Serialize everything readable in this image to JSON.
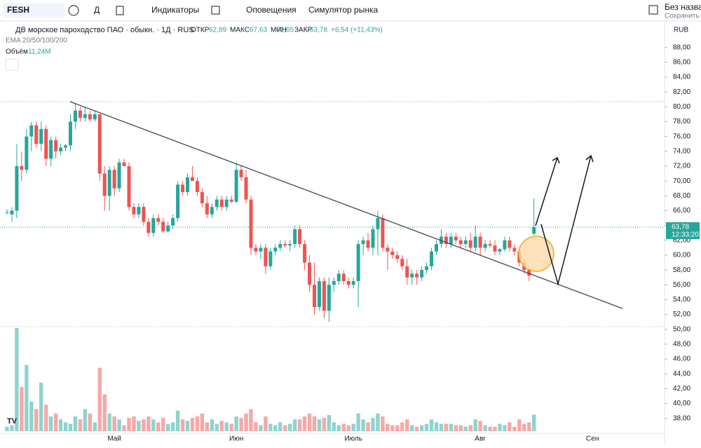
{
  "toolbar": {
    "symbol": "FESH",
    "interval": "Д",
    "indicators": "Индикаторы",
    "alerts": "Оповещения",
    "replay": "Симулятор рынка",
    "layout_name": "Без названи",
    "save": "Сохранить"
  },
  "legend": {
    "name": "ДВ морское пароходство ПАО · обыкн. · 1Д · RUS",
    "open_label": "ОТКР",
    "open": "62,89",
    "high_label": "МАКС",
    "high": "67,63",
    "low_label": "МИН",
    "low": "62,65",
    "close_label": "ЗАКР",
    "close": "63,78",
    "change": "+6,54 (+11,43%)",
    "ema": "EMA 20/50/100/200",
    "volume_label": "Объём",
    "volume_value": "11,24M"
  },
  "chart_data": {
    "type": "candlestick",
    "currency": "RUB",
    "price_label": "63,78",
    "countdown": "12:33:20",
    "up_color": "#26a69a",
    "down_color": "#ef5350",
    "volume_up_color": "#8fd3cd",
    "volume_down_color": "#f5a8a8",
    "ylim": [
      35.8,
      89.2
    ],
    "yticks": [
      {
        "value": 38,
        "label": "38,00"
      },
      {
        "value": 40,
        "label": "40,00"
      },
      {
        "value": 42,
        "label": "42,00"
      },
      {
        "value": 44,
        "label": "44,00"
      },
      {
        "value": 46,
        "label": "46,00"
      },
      {
        "value": 48,
        "label": "48,00"
      },
      {
        "value": 50,
        "label": "50,00"
      },
      {
        "value": 52,
        "label": "52,00"
      },
      {
        "value": 54,
        "label": "54,00"
      },
      {
        "value": 56,
        "label": "56,00"
      },
      {
        "value": 58,
        "label": "58,00"
      },
      {
        "value": 60,
        "label": "60,00"
      },
      {
        "value": 62,
        "label": "62,00"
      },
      {
        "value": 64,
        "label": "64,00"
      },
      {
        "value": 66,
        "label": "66,00"
      },
      {
        "value": 68,
        "label": "68,00"
      },
      {
        "value": 70,
        "label": "70,00"
      },
      {
        "value": 72,
        "label": "72,00"
      },
      {
        "value": 74,
        "label": "74,00"
      },
      {
        "value": 76,
        "label": "76,00"
      },
      {
        "value": 78,
        "label": "78,00"
      },
      {
        "value": 80,
        "label": "80,00"
      },
      {
        "value": 82,
        "label": "82,00"
      },
      {
        "value": 84,
        "label": "84,00"
      },
      {
        "value": 86,
        "label": "86,00"
      },
      {
        "value": 88,
        "label": "88,00"
      }
    ],
    "categories": [
      null,
      null,
      null,
      null,
      null,
      null,
      null,
      null,
      null,
      null,
      null,
      null,
      null,
      null,
      null,
      null,
      null,
      null,
      null,
      null,
      null,
      null,
      "Май",
      null,
      null,
      null,
      null,
      null,
      null,
      null,
      null,
      null,
      null,
      null,
      null,
      null,
      null,
      null,
      null,
      null,
      null,
      null,
      null,
      null,
      null,
      null,
      null,
      "Июн",
      null,
      null,
      null,
      null,
      null,
      null,
      null,
      null,
      null,
      null,
      null,
      null,
      null,
      null,
      null,
      null,
      null,
      null,
      null,
      null,
      null,
      null,
      null,
      "Июль",
      null,
      null,
      null,
      null,
      null,
      null,
      null,
      null,
      null,
      null,
      null,
      null,
      null,
      null,
      null,
      null,
      null,
      null,
      null,
      null,
      null,
      null,
      null,
      null,
      null,
      "Авг",
      null,
      null,
      null,
      null,
      null,
      null,
      null,
      null,
      null,
      null,
      null,
      null,
      null,
      null,
      null,
      null,
      null,
      null,
      null,
      null,
      null,
      null,
      "Сен"
    ],
    "open": [
      65.8,
      65.5,
      66,
      72,
      71.5,
      76,
      77.5,
      75,
      77,
      73,
      75.5,
      74,
      74.5,
      74.8,
      78,
      79.5,
      78.5,
      79,
      78.3,
      79,
      71,
      68,
      71.5,
      69,
      72.5,
      72,
      66.5,
      65.5,
      66.5,
      64.5,
      63,
      65,
      64.5,
      63.2,
      64,
      65,
      69.5,
      68.5,
      70.5,
      70,
      68.5,
      67,
      65.5,
      66.5,
      67.5,
      66.5,
      67.5,
      67.2,
      71.5,
      70.5,
      67.5,
      61,
      60.5,
      61,
      58.5,
      60.5,
      61,
      61.5,
      61.3,
      61.5,
      63.5,
      61.5,
      59,
      56,
      53,
      56.5,
      52.5,
      56,
      56.5,
      57.5,
      56.5,
      56,
      56.5,
      61.5,
      62,
      61,
      63.5,
      65,
      61,
      60.5,
      60,
      59.5,
      58.5,
      57,
      57.5,
      57,
      58,
      58.5,
      60.5,
      61.5,
      62.5,
      61.5,
      62.5,
      62,
      61.5,
      62,
      61,
      62.5,
      61,
      61.5,
      61.3,
      60.5,
      60.8,
      62,
      61,
      60.5,
      59,
      58,
      62.89,
      null,
      null,
      null,
      null,
      null,
      null,
      null,
      null,
      null,
      null,
      null,
      null
    ],
    "high": [
      66.2,
      66.5,
      75,
      74,
      77,
      78,
      78,
      78,
      77.5,
      76,
      76,
      75,
      75,
      79,
      80.5,
      80,
      80,
      79.5,
      79.5,
      79,
      72,
      72,
      72,
      73,
      73,
      72.5,
      67,
      67,
      67,
      65,
      65.5,
      65.5,
      65,
      64.5,
      65.5,
      70,
      70,
      71,
      72,
      70.5,
      69,
      68,
      67,
      68,
      68,
      68,
      68,
      72.5,
      72,
      71.5,
      68,
      61.5,
      61.5,
      61.5,
      61,
      61.5,
      62,
      62,
      62,
      64,
      64,
      62,
      60,
      59,
      57,
      57,
      57,
      57,
      58,
      58,
      57,
      57,
      62,
      62.5,
      63,
      64,
      66,
      65.5,
      61.5,
      61,
      60.5,
      60,
      59.5,
      58,
      58,
      58.5,
      59,
      61,
      62,
      63.5,
      63,
      63,
      63,
      62.5,
      62.5,
      63,
      64,
      63,
      62,
      62,
      62,
      61,
      62.5,
      62.5,
      61.5,
      61,
      59.5,
      58.5,
      67.63,
      null,
      null,
      null,
      null,
      null,
      null,
      null,
      null,
      null,
      null,
      null,
      null
    ],
    "low": [
      65.5,
      64.5,
      65,
      70,
      71,
      74,
      74.5,
      74,
      72,
      72,
      73,
      73.5,
      74,
      74,
      77,
      78,
      78,
      78,
      78,
      70,
      66,
      66,
      68,
      68.5,
      72,
      66,
      65,
      65,
      64,
      62.5,
      62.5,
      64,
      63,
      63,
      63.5,
      64.5,
      68,
      68,
      70,
      68,
      66.5,
      65,
      65,
      66,
      66,
      66,
      67,
      67,
      70,
      67,
      60,
      60,
      59.5,
      57.5,
      58,
      60,
      60.5,
      61,
      60.5,
      61,
      61,
      58,
      55,
      52,
      52.5,
      51.5,
      51,
      55,
      56,
      56,
      55.5,
      55.5,
      53,
      60,
      60.5,
      60,
      60,
      60.5,
      58,
      59.5,
      59,
      58,
      56,
      56,
      56,
      56.5,
      57.5,
      58,
      60,
      61,
      61,
      61,
      61.5,
      61,
      61,
      60.5,
      60.5,
      60,
      60.5,
      61,
      60,
      60,
      60.5,
      60.5,
      60,
      58.5,
      57.5,
      56.5,
      62.65,
      null,
      null,
      null,
      null,
      null,
      null,
      null,
      null,
      null,
      null,
      null,
      null
    ],
    "close": [
      65.8,
      66,
      72,
      71.5,
      76,
      77.5,
      75,
      77,
      73,
      75.5,
      74,
      74.5,
      74.8,
      78,
      79.5,
      78.5,
      79,
      78.3,
      79,
      71,
      68,
      71.5,
      69,
      72.5,
      72,
      66.5,
      65.5,
      66.5,
      64.5,
      63,
      65,
      64.5,
      63.2,
      64,
      65,
      69.5,
      68.5,
      70.5,
      70,
      68.5,
      67,
      65.5,
      66.5,
      67.5,
      66.5,
      67.5,
      67.2,
      71.5,
      70.5,
      67.5,
      61,
      60.5,
      61,
      58.5,
      60.5,
      61,
      61.5,
      61.3,
      61.5,
      63.5,
      61.5,
      59,
      56,
      53,
      56.5,
      52.5,
      56,
      56.5,
      57.5,
      56.5,
      56,
      56.5,
      61.5,
      62,
      61,
      63.5,
      65,
      61,
      60.5,
      60,
      59.5,
      58.5,
      57,
      57.5,
      57,
      58,
      58.5,
      60.5,
      61.5,
      62.5,
      61.5,
      62.5,
      62,
      61.5,
      62,
      61,
      62.5,
      61,
      61.5,
      61.3,
      60.5,
      60.8,
      62,
      61,
      60.5,
      59,
      58,
      57.24,
      63.78,
      null,
      null,
      null,
      null,
      null,
      null,
      null,
      null,
      null,
      null,
      null,
      null
    ],
    "volume": [
      3,
      4,
      70,
      30,
      45,
      20,
      15,
      33,
      18,
      10,
      12,
      8,
      6,
      5,
      10,
      8,
      15,
      12,
      6,
      43,
      25,
      12,
      10,
      8,
      4,
      9,
      10,
      7,
      8,
      10,
      8,
      6,
      9,
      5,
      6,
      14,
      8,
      7,
      9,
      10,
      12,
      6,
      8,
      5,
      7,
      6,
      5,
      10,
      9,
      12,
      15,
      6,
      4,
      10,
      5,
      4,
      6,
      4,
      5,
      8,
      8,
      10,
      12,
      10,
      8,
      9,
      11,
      6,
      4,
      5,
      4,
      5,
      12,
      8,
      6,
      9,
      12,
      10,
      5,
      4,
      4,
      6,
      8,
      4,
      3,
      4,
      5,
      8,
      6,
      5,
      5,
      5,
      4,
      4,
      3,
      4,
      8,
      7,
      4,
      3,
      3,
      5,
      4,
      6,
      3,
      8,
      5,
      6,
      11.24,
      null,
      null,
      null,
      null,
      null,
      null,
      null,
      null,
      null,
      null,
      null,
      null
    ]
  }
}
